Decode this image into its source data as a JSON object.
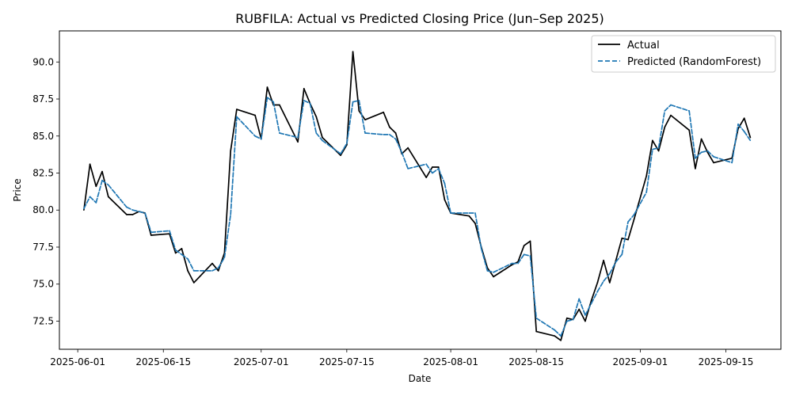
{
  "chart_data": {
    "type": "line",
    "title": "RUBFILA: Actual vs Predicted Closing Price (Jun–Sep 2025)",
    "xlabel": "Date",
    "ylabel": "Price",
    "xlim": [
      "2025-05-29",
      "2025-09-24"
    ],
    "ylim": [
      70.6,
      92.1
    ],
    "x_ticks": [
      "2025-06-01",
      "2025-06-15",
      "2025-07-01",
      "2025-07-15",
      "2025-08-01",
      "2025-08-15",
      "2025-09-01",
      "2025-09-15"
    ],
    "y_ticks": [
      "72.5",
      "75.0",
      "77.5",
      "80.0",
      "82.5",
      "85.0",
      "87.5",
      "90.0"
    ],
    "legend": "top-right",
    "grid": false,
    "series": [
      {
        "name": "Actual",
        "color": "#000000",
        "style": "solid",
        "points": [
          [
            "2025-06-02",
            80.0
          ],
          [
            "2025-06-03",
            83.1
          ],
          [
            "2025-06-04",
            81.6
          ],
          [
            "2025-06-05",
            82.6
          ],
          [
            "2025-06-06",
            80.9
          ],
          [
            "2025-06-09",
            79.7
          ],
          [
            "2025-06-10",
            79.7
          ],
          [
            "2025-06-11",
            79.9
          ],
          [
            "2025-06-12",
            79.8
          ],
          [
            "2025-06-13",
            78.3
          ],
          [
            "2025-06-16",
            78.4
          ],
          [
            "2025-06-17",
            77.1
          ],
          [
            "2025-06-18",
            77.4
          ],
          [
            "2025-06-19",
            75.9
          ],
          [
            "2025-06-20",
            75.1
          ],
          [
            "2025-06-23",
            76.4
          ],
          [
            "2025-06-24",
            75.9
          ],
          [
            "2025-06-25",
            77.1
          ],
          [
            "2025-06-26",
            84.0
          ],
          [
            "2025-06-27",
            86.8
          ],
          [
            "2025-06-30",
            86.4
          ],
          [
            "2025-07-01",
            84.8
          ],
          [
            "2025-07-02",
            88.3
          ],
          [
            "2025-07-03",
            87.1
          ],
          [
            "2025-07-04",
            87.1
          ],
          [
            "2025-07-07",
            84.6
          ],
          [
            "2025-07-08",
            88.2
          ],
          [
            "2025-07-09",
            87.2
          ],
          [
            "2025-07-10",
            86.3
          ],
          [
            "2025-07-11",
            84.9
          ],
          [
            "2025-07-14",
            83.7
          ],
          [
            "2025-07-15",
            84.4
          ],
          [
            "2025-07-16",
            90.7
          ],
          [
            "2025-07-17",
            86.7
          ],
          [
            "2025-07-18",
            86.1
          ],
          [
            "2025-07-21",
            86.6
          ],
          [
            "2025-07-22",
            85.6
          ],
          [
            "2025-07-23",
            85.2
          ],
          [
            "2025-07-24",
            83.8
          ],
          [
            "2025-07-25",
            84.2
          ],
          [
            "2025-07-28",
            82.2
          ],
          [
            "2025-07-29",
            82.9
          ],
          [
            "2025-07-30",
            82.9
          ],
          [
            "2025-07-31",
            80.7
          ],
          [
            "2025-08-01",
            79.8
          ],
          [
            "2025-08-04",
            79.6
          ],
          [
            "2025-08-05",
            79.1
          ],
          [
            "2025-08-06",
            77.5
          ],
          [
            "2025-08-07",
            76.1
          ],
          [
            "2025-08-08",
            75.5
          ],
          [
            "2025-08-11",
            76.3
          ],
          [
            "2025-08-12",
            76.5
          ],
          [
            "2025-08-13",
            77.6
          ],
          [
            "2025-08-14",
            77.9
          ],
          [
            "2025-08-15",
            71.8
          ],
          [
            "2025-08-18",
            71.5
          ],
          [
            "2025-08-19",
            71.2
          ],
          [
            "2025-08-20",
            72.7
          ],
          [
            "2025-08-21",
            72.6
          ],
          [
            "2025-08-22",
            73.3
          ],
          [
            "2025-08-23",
            72.5
          ],
          [
            "2025-08-24",
            73.9
          ],
          [
            "2025-08-25",
            75.1
          ],
          [
            "2025-08-26",
            76.6
          ],
          [
            "2025-08-27",
            75.1
          ],
          [
            "2025-08-28",
            76.6
          ],
          [
            "2025-08-29",
            78.1
          ],
          [
            "2025-08-30",
            78.0
          ],
          [
            "2025-08-31",
            79.4
          ],
          [
            "2025-09-02",
            82.3
          ],
          [
            "2025-09-03",
            84.7
          ],
          [
            "2025-09-04",
            84.0
          ],
          [
            "2025-09-05",
            85.6
          ],
          [
            "2025-09-06",
            86.4
          ],
          [
            "2025-09-09",
            85.4
          ],
          [
            "2025-09-10",
            82.8
          ],
          [
            "2025-09-11",
            84.8
          ],
          [
            "2025-09-12",
            83.9
          ],
          [
            "2025-09-13",
            83.2
          ],
          [
            "2025-09-16",
            83.5
          ],
          [
            "2025-09-17",
            85.5
          ],
          [
            "2025-09-18",
            86.2
          ],
          [
            "2025-09-19",
            84.9
          ]
        ]
      },
      {
        "name": "Predicted (RandomForest)",
        "color": "#1f77b4",
        "style": "dashed",
        "points": [
          [
            "2025-06-02",
            80.1
          ],
          [
            "2025-06-03",
            80.9
          ],
          [
            "2025-06-04",
            80.5
          ],
          [
            "2025-06-05",
            82.0
          ],
          [
            "2025-06-06",
            81.7
          ],
          [
            "2025-06-09",
            80.2
          ],
          [
            "2025-06-10",
            80.0
          ],
          [
            "2025-06-11",
            79.9
          ],
          [
            "2025-06-12",
            79.8
          ],
          [
            "2025-06-13",
            78.5
          ],
          [
            "2025-06-16",
            78.6
          ],
          [
            "2025-06-17",
            77.3
          ],
          [
            "2025-06-18",
            77.0
          ],
          [
            "2025-06-19",
            76.7
          ],
          [
            "2025-06-20",
            75.9
          ],
          [
            "2025-06-23",
            75.9
          ],
          [
            "2025-06-24",
            76.1
          ],
          [
            "2025-06-25",
            76.8
          ],
          [
            "2025-06-26",
            79.7
          ],
          [
            "2025-06-27",
            86.3
          ],
          [
            "2025-06-30",
            85.0
          ],
          [
            "2025-07-01",
            84.8
          ],
          [
            "2025-07-02",
            87.6
          ],
          [
            "2025-07-03",
            87.3
          ],
          [
            "2025-07-04",
            85.2
          ],
          [
            "2025-07-07",
            84.9
          ],
          [
            "2025-07-08",
            87.4
          ],
          [
            "2025-07-09",
            87.2
          ],
          [
            "2025-07-10",
            85.2
          ],
          [
            "2025-07-11",
            84.7
          ],
          [
            "2025-07-14",
            83.8
          ],
          [
            "2025-07-15",
            84.5
          ],
          [
            "2025-07-16",
            87.3
          ],
          [
            "2025-07-17",
            87.4
          ],
          [
            "2025-07-18",
            85.2
          ],
          [
            "2025-07-21",
            85.1
          ],
          [
            "2025-07-22",
            85.1
          ],
          [
            "2025-07-23",
            84.8
          ],
          [
            "2025-07-24",
            83.9
          ],
          [
            "2025-07-25",
            82.8
          ],
          [
            "2025-07-28",
            83.1
          ],
          [
            "2025-07-29",
            82.5
          ],
          [
            "2025-07-30",
            82.8
          ],
          [
            "2025-07-31",
            81.8
          ],
          [
            "2025-08-01",
            79.8
          ],
          [
            "2025-08-04",
            79.8
          ],
          [
            "2025-08-05",
            79.8
          ],
          [
            "2025-08-06",
            77.4
          ],
          [
            "2025-08-07",
            75.9
          ],
          [
            "2025-08-08",
            75.8
          ],
          [
            "2025-08-11",
            76.4
          ],
          [
            "2025-08-12",
            76.4
          ],
          [
            "2025-08-13",
            77.0
          ],
          [
            "2025-08-14",
            76.9
          ],
          [
            "2025-08-15",
            72.7
          ],
          [
            "2025-08-18",
            71.9
          ],
          [
            "2025-08-19",
            71.5
          ],
          [
            "2025-08-20",
            72.5
          ],
          [
            "2025-08-21",
            72.6
          ],
          [
            "2025-08-22",
            74.0
          ],
          [
            "2025-08-23",
            72.9
          ],
          [
            "2025-08-24",
            73.7
          ],
          [
            "2025-08-25",
            74.5
          ],
          [
            "2025-08-26",
            75.2
          ],
          [
            "2025-08-27",
            75.7
          ],
          [
            "2025-08-28",
            76.5
          ],
          [
            "2025-08-29",
            77.0
          ],
          [
            "2025-08-30",
            79.2
          ],
          [
            "2025-08-31",
            79.7
          ],
          [
            "2025-09-02",
            81.2
          ],
          [
            "2025-09-03",
            84.1
          ],
          [
            "2025-09-04",
            84.2
          ],
          [
            "2025-09-05",
            86.7
          ],
          [
            "2025-09-06",
            87.1
          ],
          [
            "2025-09-09",
            86.7
          ],
          [
            "2025-09-10",
            83.5
          ],
          [
            "2025-09-11",
            83.9
          ],
          [
            "2025-09-12",
            84.0
          ],
          [
            "2025-09-13",
            83.6
          ],
          [
            "2025-09-16",
            83.2
          ],
          [
            "2025-09-17",
            85.8
          ],
          [
            "2025-09-18",
            85.3
          ],
          [
            "2025-09-19",
            84.7
          ]
        ]
      }
    ]
  }
}
